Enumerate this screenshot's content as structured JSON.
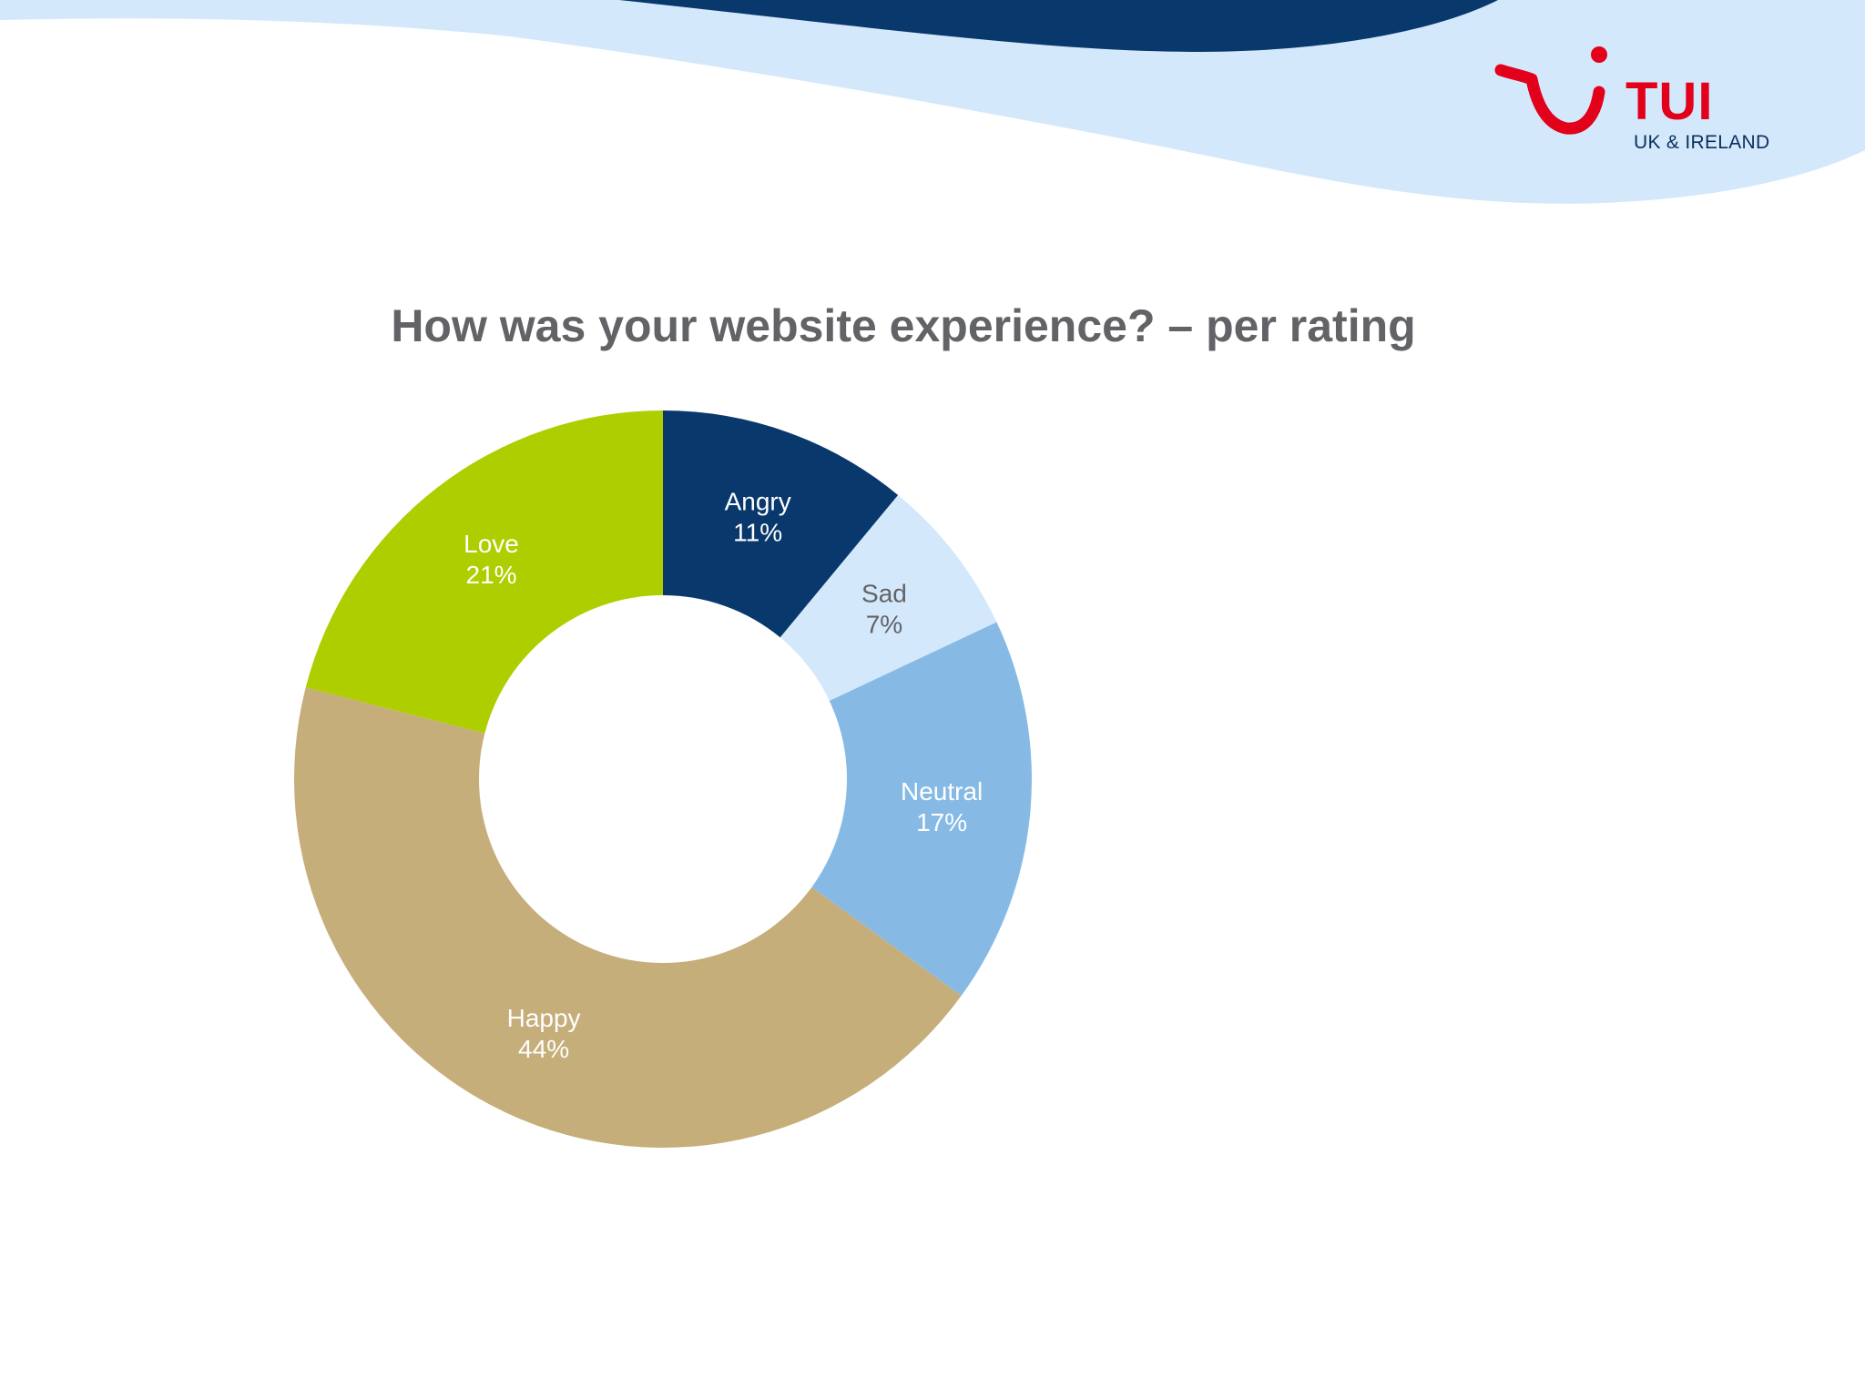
{
  "logo": {
    "brand": "TUI",
    "region": "UK & IRELAND",
    "brand_color": "#e2001a",
    "region_color": "#0a2f5e"
  },
  "theme": {
    "wave_light": "#d3e8fb",
    "wave_dark": "#09386c",
    "title_color": "#626366"
  },
  "chart_data": {
    "type": "pie",
    "title": "How was your website experience? – per rating",
    "donut": true,
    "slices": [
      {
        "label": "Angry",
        "value": 11,
        "display": "11%",
        "color": "#09386c",
        "label_color": "#ffffff"
      },
      {
        "label": "Sad",
        "value": 7,
        "display": "7%",
        "color": "#d3e8fb",
        "label_color": "#626366"
      },
      {
        "label": "Neutral",
        "value": 17,
        "display": "17%",
        "color": "#86bae5",
        "label_color": "#ffffff"
      },
      {
        "label": "Happy",
        "value": 44,
        "display": "44%",
        "color": "#c6ae7b",
        "label_color": "#ffffff"
      },
      {
        "label": "Love",
        "value": 21,
        "display": "21%",
        "color": "#aece00",
        "label_color": "#ffffff"
      }
    ]
  }
}
